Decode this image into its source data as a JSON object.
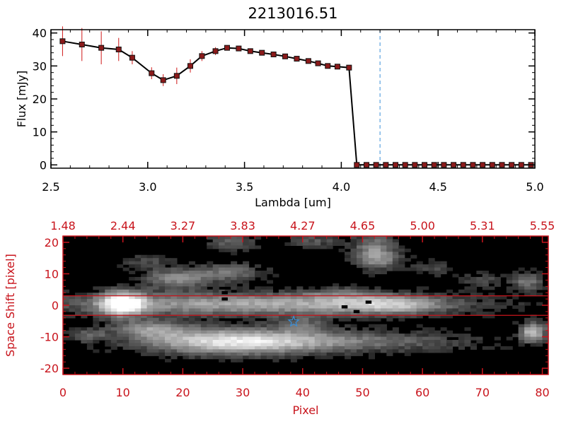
{
  "chart_data": [
    {
      "type": "line",
      "title": "2213016.51",
      "xlabel": "Lambda [um]",
      "ylabel": "Flux [mJy]",
      "xlim": [
        2.5,
        5.0
      ],
      "ylim": [
        -1,
        41
      ],
      "xticks": [
        "2.5",
        "3.0",
        "3.5",
        "4.0",
        "4.5",
        "5.0"
      ],
      "yticks": [
        "0",
        "10",
        "20",
        "30",
        "40"
      ],
      "marker_color": "#8b1a1a",
      "errorbar_color": "#d01818",
      "vline": {
        "x": 4.2,
        "color": "#3a8fd8"
      },
      "series": [
        {
          "name": "Flux",
          "x": [
            2.56,
            2.66,
            2.76,
            2.85,
            2.92,
            3.02,
            3.08,
            3.15,
            3.22,
            3.28,
            3.35,
            3.41,
            3.47,
            3.53,
            3.59,
            3.65,
            3.71,
            3.77,
            3.83,
            3.88,
            3.93,
            3.98,
            4.04,
            4.08,
            4.13,
            4.18,
            4.23,
            4.28,
            4.33,
            4.38,
            4.43,
            4.48,
            4.53,
            4.58,
            4.63,
            4.68,
            4.73,
            4.78,
            4.83,
            4.88,
            4.93,
            4.98
          ],
          "y": [
            37.5,
            36.5,
            35.5,
            35.0,
            32.5,
            27.8,
            25.7,
            27.0,
            30.0,
            33.0,
            34.5,
            35.5,
            35.3,
            34.5,
            34.0,
            33.5,
            32.9,
            32.2,
            31.5,
            30.8,
            30.0,
            29.8,
            29.5,
            0,
            0,
            0,
            0,
            0,
            0,
            0,
            0,
            0,
            0,
            0,
            0,
            0,
            0,
            0,
            0,
            0,
            0,
            0
          ],
          "yerr": [
            4.5,
            5.0,
            5.0,
            3.5,
            2.0,
            1.8,
            1.8,
            2.5,
            2.0,
            1.5,
            1.2,
            0.8,
            0.5,
            0.5,
            0.4,
            0.4,
            0.4,
            0.4,
            0.4,
            0.4,
            0.4,
            0.4,
            0.4,
            0,
            0,
            0,
            0,
            0,
            0,
            0,
            0,
            0,
            0,
            0,
            0,
            0,
            0,
            0,
            0,
            0,
            0,
            0
          ]
        }
      ]
    },
    {
      "type": "heatmap",
      "xlabel": "Pixel",
      "ylabel": "Space Shift [pixel]",
      "xlim": [
        0,
        81
      ],
      "ylim": [
        -22,
        22
      ],
      "xticks": [
        "0",
        "10",
        "20",
        "30",
        "40",
        "50",
        "60",
        "70",
        "80"
      ],
      "yticks": [
        "-20",
        "-10",
        "0",
        "10",
        "20"
      ],
      "top_ticks": [
        "1.48",
        "2.44",
        "3.27",
        "3.83",
        "4.27",
        "4.65",
        "5.00",
        "5.31",
        "5.55"
      ],
      "label_color": "#c8141c",
      "hlines": [
        3,
        -3.2
      ],
      "star": {
        "x": 38.5,
        "y": -5.2,
        "color": "#3a8fd8"
      },
      "sources": [
        {
          "cx": 10,
          "cy": 0.5,
          "sx": 2.5,
          "sy": 2.6,
          "a": 1.0
        },
        {
          "cx": 32,
          "cy": 0.4,
          "sx": 23,
          "sy": 2.5,
          "a": 0.6
        },
        {
          "cx": 52,
          "cy": 0.4,
          "sx": 6,
          "sy": 2.2,
          "a": 0.35
        },
        {
          "cx": 28,
          "cy": -11.5,
          "sx": 10,
          "sy": 2.8,
          "a": 0.8
        },
        {
          "cx": 48,
          "cy": -11.5,
          "sx": 14,
          "sy": 2.4,
          "a": 0.35
        },
        {
          "cx": 15,
          "cy": -7.5,
          "sx": 4.5,
          "sy": 2.0,
          "a": 0.45
        },
        {
          "cx": 19,
          "cy": 8.5,
          "sx": 4,
          "sy": 2.2,
          "a": 0.45
        },
        {
          "cx": 28,
          "cy": 10.5,
          "sx": 4,
          "sy": 2.0,
          "a": 0.35
        },
        {
          "cx": 52,
          "cy": 18,
          "sx": 2.5,
          "sy": 3.5,
          "a": 0.45
        },
        {
          "cx": 53,
          "cy": 14,
          "sx": 2.5,
          "sy": 2.0,
          "a": 0.3
        },
        {
          "cx": 78.5,
          "cy": -8.5,
          "sx": 1.5,
          "sy": 2.2,
          "a": 0.7
        },
        {
          "cx": 77.5,
          "cy": 7.5,
          "sx": 1.8,
          "sy": 2.0,
          "a": 0.4
        },
        {
          "cx": 28,
          "cy": 20,
          "sx": 3,
          "sy": 1.8,
          "a": 0.3
        },
        {
          "cx": 42,
          "cy": 20.5,
          "sx": 3,
          "sy": 1.6,
          "a": 0.25
        },
        {
          "cx": 4,
          "cy": -9.5,
          "sx": 2.5,
          "sy": 1.6,
          "a": 0.25
        },
        {
          "cx": 40,
          "cy": -6,
          "sx": 3,
          "sy": 2,
          "a": 0.25
        },
        {
          "cx": 62,
          "cy": 12,
          "sx": 2.5,
          "sy": 1.8,
          "a": 0.2
        },
        {
          "cx": 70,
          "cy": 8,
          "sx": 2.5,
          "sy": 1.8,
          "a": 0.2
        },
        {
          "cx": 58,
          "cy": 0,
          "sx": 4,
          "sy": 1.6,
          "a": 0.18
        },
        {
          "cx": 14,
          "cy": 14,
          "sx": 3,
          "sy": 1.6,
          "a": 0.2
        },
        {
          "cx": 46,
          "cy": 4,
          "sx": 4,
          "sy": 1.4,
          "a": 0.18
        }
      ],
      "dark_pixels": [
        [
          27,
          4
        ],
        [
          47,
          -0.5
        ],
        [
          49,
          -2
        ],
        [
          27,
          2
        ],
        [
          51,
          1
        ]
      ]
    }
  ]
}
